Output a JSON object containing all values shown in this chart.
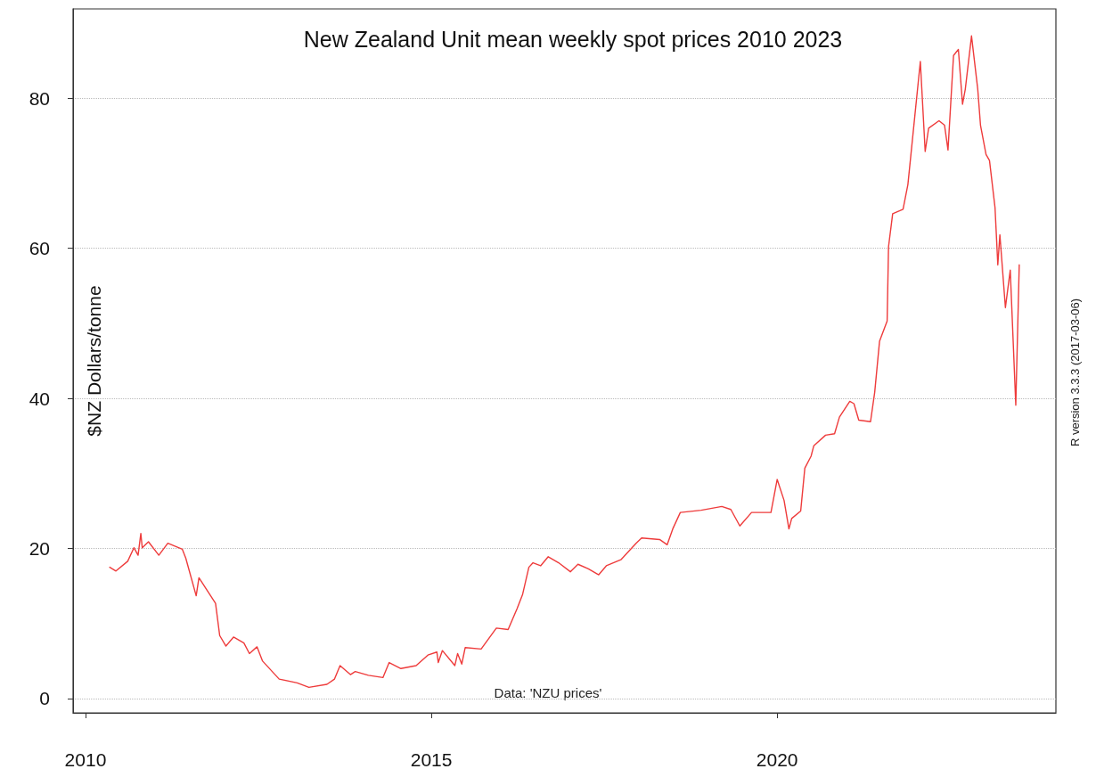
{
  "chart_data": {
    "type": "line",
    "title": "New Zealand Unit mean weekly spot prices 2010 2023",
    "ylabel": "$NZ Dollars/tonne",
    "annotations": [
      "Data: 'NZU prices'",
      "R version 3.3.3 (2017-03-06)"
    ],
    "xlim": [
      2009.82,
      2024.03
    ],
    "xticks": [
      2010,
      2015,
      2020
    ],
    "ylim": [
      -1.9,
      91.9
    ],
    "yticks": [
      0,
      20,
      40,
      60,
      80
    ],
    "grid": "y",
    "series": [
      {
        "color": "#ee3b3b",
        "x": [
          2010.35,
          2010.44,
          2010.61,
          2010.7,
          2010.76,
          2010.8,
          2010.82,
          2010.91,
          2011.06,
          2011.19,
          2011.4,
          2011.45,
          2011.6,
          2011.64,
          2011.88,
          2011.94,
          2012.03,
          2012.14,
          2012.29,
          2012.37,
          2012.48,
          2012.56,
          2012.8,
          2013.06,
          2013.23,
          2013.49,
          2013.6,
          2013.68,
          2013.83,
          2013.9,
          2014.09,
          2014.3,
          2014.39,
          2014.56,
          2014.78,
          2014.95,
          2015.08,
          2015.1,
          2015.16,
          2015.34,
          2015.38,
          2015.44,
          2015.49,
          2015.72,
          2015.94,
          2016.11,
          2016.24,
          2016.32,
          2016.41,
          2016.47,
          2016.58,
          2016.69,
          2016.84,
          2017.01,
          2017.12,
          2017.27,
          2017.42,
          2017.53,
          2017.74,
          2017.96,
          2018.04,
          2018.3,
          2018.41,
          2018.49,
          2018.6,
          2018.9,
          2019.2,
          2019.33,
          2019.46,
          2019.63,
          2019.91,
          2020.0,
          2020.1,
          2020.17,
          2020.21,
          2020.34,
          2020.4,
          2020.49,
          2020.53,
          2020.7,
          2020.83,
          2020.9,
          2021.05,
          2021.11,
          2021.18,
          2021.35,
          2021.41,
          2021.48,
          2021.59,
          2021.61,
          2021.67,
          2021.82,
          2021.89,
          2021.99,
          2022.07,
          2022.14,
          2022.19,
          2022.34,
          2022.42,
          2022.47,
          2022.55,
          2022.62,
          2022.68,
          2022.72,
          2022.81,
          2022.9,
          2022.94,
          2023.02,
          2023.07,
          2023.15,
          2023.19,
          2023.22,
          2023.3,
          2023.37,
          2023.45,
          2023.5
        ],
        "values": [
          17.5,
          17.0,
          18.3,
          20.1,
          19.1,
          22.0,
          20.1,
          20.9,
          19.1,
          20.7,
          19.9,
          18.7,
          13.7,
          16.1,
          12.7,
          8.4,
          7.0,
          8.2,
          7.4,
          6.0,
          6.9,
          5.0,
          2.6,
          2.1,
          1.5,
          1.9,
          2.6,
          4.4,
          3.2,
          3.6,
          3.1,
          2.8,
          4.8,
          4.0,
          4.4,
          5.8,
          6.2,
          4.8,
          6.4,
          4.4,
          6.0,
          4.6,
          6.8,
          6.6,
          9.4,
          9.2,
          12.0,
          13.9,
          17.5,
          18.1,
          17.7,
          18.9,
          18.1,
          16.9,
          17.9,
          17.3,
          16.5,
          17.7,
          18.5,
          20.7,
          21.4,
          21.2,
          20.5,
          22.6,
          24.8,
          25.1,
          25.6,
          25.2,
          23.0,
          24.8,
          24.8,
          29.2,
          26.4,
          22.6,
          24.0,
          25.0,
          30.7,
          32.3,
          33.7,
          35.1,
          35.3,
          37.5,
          39.6,
          39.3,
          37.1,
          36.9,
          40.8,
          47.6,
          50.3,
          60.2,
          64.6,
          65.2,
          68.5,
          77.6,
          84.9,
          72.9,
          76.0,
          77.0,
          76.4,
          73.1,
          85.7,
          86.5,
          79.2,
          81.2,
          88.3,
          81.2,
          76.4,
          72.5,
          71.7,
          65.4,
          57.8,
          61.8,
          52.1,
          57.1,
          39.1,
          57.8
        ]
      }
    ]
  }
}
